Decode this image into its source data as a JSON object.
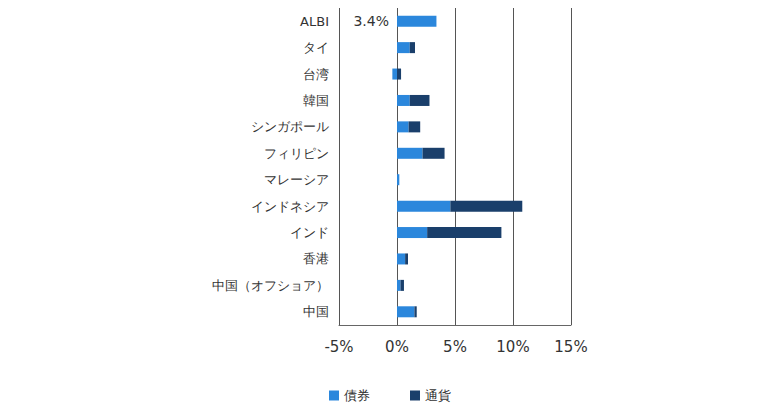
{
  "chart_data": {
    "type": "bar",
    "orientation": "horizontal",
    "stacked": true,
    "categories": [
      "ALBI",
      "タイ",
      "台湾",
      "韓国",
      "シンガポール",
      "フィリピン",
      "マレーシア",
      "インドネシア",
      "インド",
      "香港",
      "中国（オフショア）",
      "中国"
    ],
    "series": [
      {
        "name": "債券",
        "color": "#2b87dc",
        "values": [
          3.4,
          1.1,
          -0.4,
          1.1,
          1.0,
          2.2,
          0.2,
          4.6,
          2.6,
          0.7,
          0.3,
          1.5
        ],
        "value_labels": [
          "3.4%",
          null,
          null,
          null,
          null,
          null,
          null,
          null,
          null,
          null,
          null,
          null
        ]
      },
      {
        "name": "通貨",
        "color": "#1a3f6b",
        "values": [
          0,
          0.45,
          0.35,
          1.7,
          1.0,
          1.9,
          0,
          6.2,
          6.4,
          0.25,
          0.3,
          0.2
        ]
      }
    ],
    "xlim": [
      -5,
      15
    ],
    "xticks": [
      {
        "value": -5,
        "label": "-5%"
      },
      {
        "value": 0,
        "label": "0%"
      },
      {
        "value": 5,
        "label": "5%"
      },
      {
        "value": 10,
        "label": "10%"
      },
      {
        "value": 15,
        "label": "15%"
      }
    ],
    "grid": true,
    "legend": "bottom",
    "data_labels": true
  }
}
